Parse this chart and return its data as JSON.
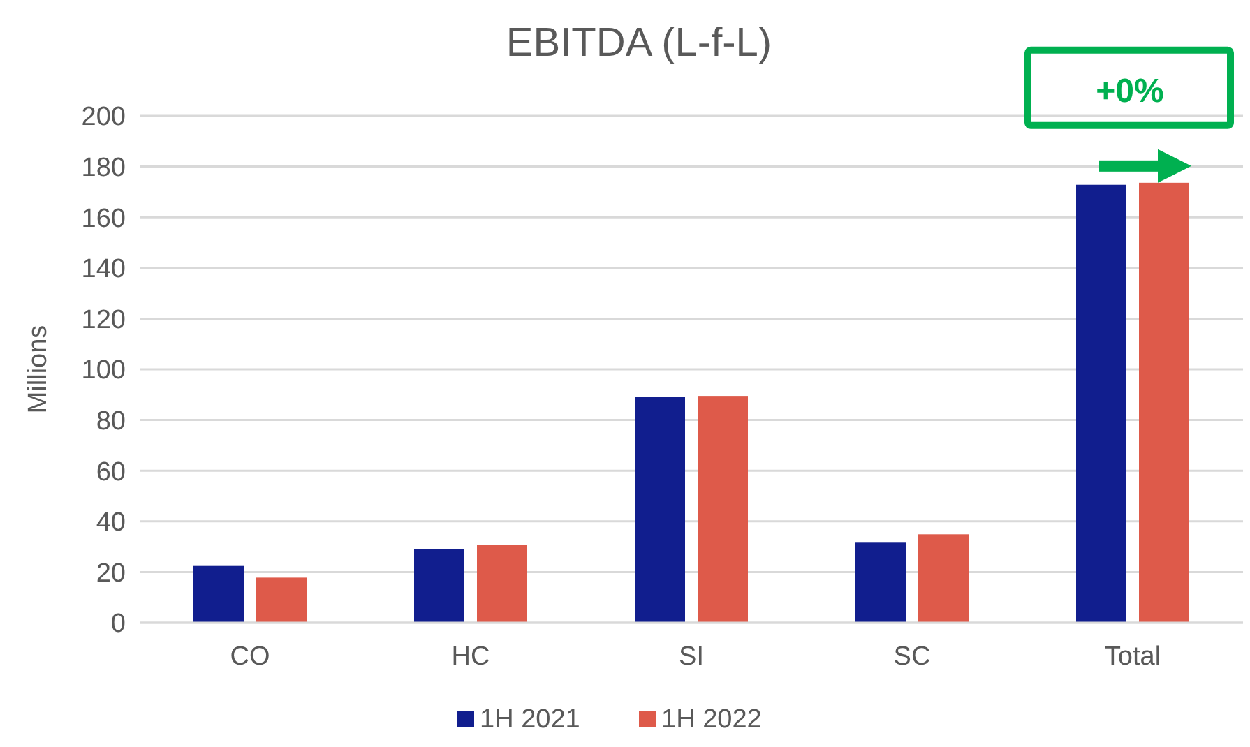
{
  "chart_data": {
    "type": "bar",
    "title": "EBITDA (L-f-L)",
    "ylabel": "Millions",
    "categories": [
      "CO",
      "HC",
      "SI",
      "SC",
      "Total"
    ],
    "series": [
      {
        "name": "1H 2021",
        "color": "#111e8e",
        "values": [
          22.4,
          29.2,
          89.2,
          31.6,
          172.8
        ]
      },
      {
        "name": "1H 2022",
        "color": "#de5a4a",
        "values": [
          17.8,
          30.6,
          89.5,
          34.9,
          173.6
        ]
      }
    ],
    "ylim": [
      0,
      200
    ],
    "yticks": [
      0,
      20,
      40,
      60,
      80,
      100,
      120,
      140,
      160,
      180,
      200
    ],
    "grid": "y",
    "legend": "bottom",
    "annotations": [
      {
        "text": "+0%",
        "x": "Total",
        "y": 173.6
      }
    ]
  }
}
